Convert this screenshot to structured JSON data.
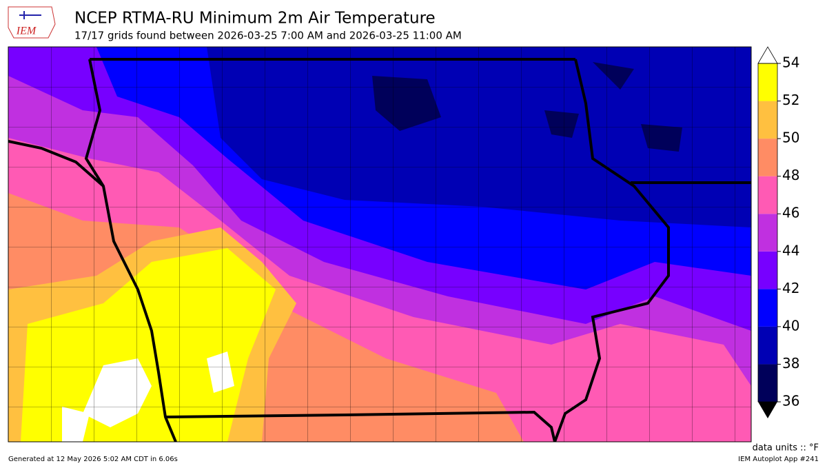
{
  "header": {
    "logo": "IEM",
    "title": "NCEP RTMA-RU Minimum 2m Air Temperature",
    "subtitle": "17/17 grids found between 2026-03-25 7:00 AM and 2026-03-25 11:00 AM"
  },
  "colorbar": {
    "ticks": [
      36,
      38,
      40,
      42,
      44,
      46,
      48,
      50,
      52,
      54
    ],
    "colors": [
      "#00005a",
      "#0000b4",
      "#0000ff",
      "#7700ff",
      "#c030e0",
      "#ff5ab4",
      "#ff8c64",
      "#ffc040",
      "#ffff00"
    ],
    "over_color": "#ffffff",
    "under_color": "#000000",
    "units": "data units :: °F"
  },
  "footer": {
    "left": "Generated at 12 May 2026 5:02 AM CDT in 6.06s",
    "right": "IEM Autoplot App #241"
  }
}
